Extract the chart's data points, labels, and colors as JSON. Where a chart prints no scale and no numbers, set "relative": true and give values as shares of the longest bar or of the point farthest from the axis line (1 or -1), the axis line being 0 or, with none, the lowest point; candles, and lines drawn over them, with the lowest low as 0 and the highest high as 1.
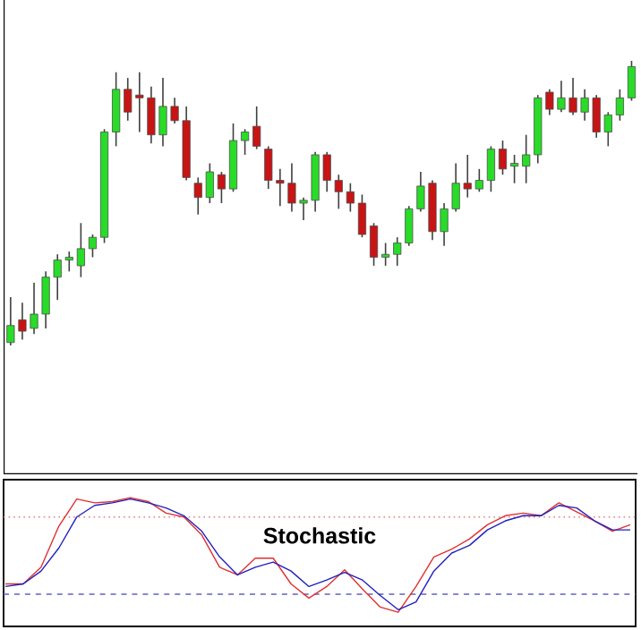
{
  "chart_data": [
    {
      "type": "candlestick",
      "relative": true,
      "categories": [
        null,
        null,
        null,
        null,
        null,
        null,
        null,
        null,
        null,
        null,
        null,
        null,
        null,
        null,
        null,
        null,
        null,
        null,
        null,
        null,
        null,
        null,
        null,
        null,
        null,
        null,
        null,
        null,
        null,
        null,
        null,
        null,
        null,
        null,
        null,
        null,
        null,
        null,
        null,
        null,
        null,
        null,
        null,
        null,
        null,
        null,
        null,
        null,
        null,
        null,
        null,
        null,
        null,
        null
      ],
      "ohlc": [
        [
          0.01,
          0.17,
          0.0,
          0.07
        ],
        [
          0.09,
          0.15,
          0.02,
          0.05
        ],
        [
          0.06,
          0.22,
          0.04,
          0.11
        ],
        [
          0.11,
          0.26,
          0.06,
          0.24
        ],
        [
          0.24,
          0.32,
          0.16,
          0.3
        ],
        [
          0.3,
          0.33,
          0.26,
          0.31
        ],
        [
          0.28,
          0.43,
          0.24,
          0.34
        ],
        [
          0.34,
          0.39,
          0.31,
          0.38
        ],
        [
          0.38,
          0.76,
          0.36,
          0.75
        ],
        [
          0.75,
          0.96,
          0.7,
          0.9
        ],
        [
          0.9,
          0.94,
          0.79,
          0.82
        ],
        [
          0.88,
          0.96,
          0.75,
          0.87
        ],
        [
          0.87,
          0.91,
          0.71,
          0.74
        ],
        [
          0.74,
          0.94,
          0.7,
          0.84
        ],
        [
          0.84,
          0.87,
          0.78,
          0.79
        ],
        [
          0.79,
          0.84,
          0.58,
          0.59
        ],
        [
          0.57,
          0.59,
          0.46,
          0.52
        ],
        [
          0.52,
          0.64,
          0.5,
          0.61
        ],
        [
          0.6,
          0.61,
          0.5,
          0.55
        ],
        [
          0.55,
          0.78,
          0.54,
          0.72
        ],
        [
          0.72,
          0.76,
          0.67,
          0.75
        ],
        [
          0.77,
          0.84,
          0.69,
          0.7
        ],
        [
          0.69,
          0.7,
          0.55,
          0.58
        ],
        [
          0.58,
          0.62,
          0.49,
          0.57
        ],
        [
          0.57,
          0.64,
          0.47,
          0.5
        ],
        [
          0.5,
          0.52,
          0.44,
          0.51
        ],
        [
          0.51,
          0.68,
          0.47,
          0.67
        ],
        [
          0.67,
          0.68,
          0.54,
          0.58
        ],
        [
          0.58,
          0.6,
          0.48,
          0.54
        ],
        [
          0.54,
          0.57,
          0.47,
          0.5
        ],
        [
          0.5,
          0.53,
          0.38,
          0.39
        ],
        [
          0.42,
          0.43,
          0.28,
          0.31
        ],
        [
          0.31,
          0.36,
          0.28,
          0.32
        ],
        [
          0.32,
          0.38,
          0.28,
          0.36
        ],
        [
          0.36,
          0.49,
          0.35,
          0.48
        ],
        [
          0.48,
          0.61,
          0.47,
          0.56
        ],
        [
          0.57,
          0.58,
          0.37,
          0.4
        ],
        [
          0.4,
          0.5,
          0.35,
          0.48
        ],
        [
          0.48,
          0.64,
          0.47,
          0.57
        ],
        [
          0.57,
          0.67,
          0.52,
          0.55
        ],
        [
          0.55,
          0.62,
          0.54,
          0.58
        ],
        [
          0.58,
          0.7,
          0.54,
          0.69
        ],
        [
          0.69,
          0.72,
          0.6,
          0.62
        ],
        [
          0.63,
          0.67,
          0.57,
          0.64
        ],
        [
          0.63,
          0.74,
          0.57,
          0.67
        ],
        [
          0.67,
          0.88,
          0.64,
          0.87
        ],
        [
          0.89,
          0.9,
          0.81,
          0.83
        ],
        [
          0.83,
          0.93,
          0.82,
          0.87
        ],
        [
          0.87,
          0.94,
          0.81,
          0.82
        ],
        [
          0.82,
          0.9,
          0.79,
          0.87
        ],
        [
          0.87,
          0.88,
          0.73,
          0.75
        ],
        [
          0.75,
          0.82,
          0.7,
          0.81
        ],
        [
          0.81,
          0.9,
          0.79,
          0.87
        ],
        [
          0.87,
          1.0,
          0.86,
          0.98
        ]
      ]
    },
    {
      "type": "line",
      "relative": true,
      "categories": [
        null,
        null,
        null,
        null,
        null,
        null,
        null,
        null,
        null,
        null,
        null,
        null,
        null,
        null,
        null,
        null,
        null,
        null,
        null,
        null,
        null,
        null,
        null,
        null,
        null,
        null,
        null,
        null,
        null,
        null,
        null,
        null,
        null,
        null,
        null,
        null
      ],
      "series": [
        {
          "color": "#e03030",
          "values": [
            0.33,
            0.33,
            0.46,
            0.78,
            0.99,
            0.96,
            0.97,
            1.0,
            0.97,
            0.88,
            0.85,
            0.71,
            0.46,
            0.4,
            0.53,
            0.53,
            0.33,
            0.22,
            0.31,
            0.44,
            0.29,
            0.15,
            0.11,
            0.31,
            0.54,
            0.6,
            0.68,
            0.79,
            0.86,
            0.88,
            0.86,
            0.96,
            0.89,
            0.82,
            0.74,
            0.79
          ]
        },
        {
          "color": "#2020c0",
          "values": [
            0.31,
            0.33,
            0.43,
            0.61,
            0.85,
            0.94,
            0.96,
            0.99,
            0.96,
            0.92,
            0.86,
            0.74,
            0.54,
            0.4,
            0.46,
            0.5,
            0.43,
            0.31,
            0.36,
            0.42,
            0.36,
            0.24,
            0.13,
            0.19,
            0.43,
            0.57,
            0.63,
            0.75,
            0.82,
            0.86,
            0.86,
            0.94,
            0.92,
            0.82,
            0.75,
            0.75
          ]
        }
      ],
      "ref_lines": [
        {
          "axis": "y",
          "value": 0.85,
          "color": "#e08080",
          "line_style": "dotted"
        },
        {
          "axis": "y",
          "value": 0.25,
          "color": "#6060c0",
          "line_style": "dashed"
        }
      ],
      "annotations": [
        "Stochastic"
      ]
    }
  ]
}
